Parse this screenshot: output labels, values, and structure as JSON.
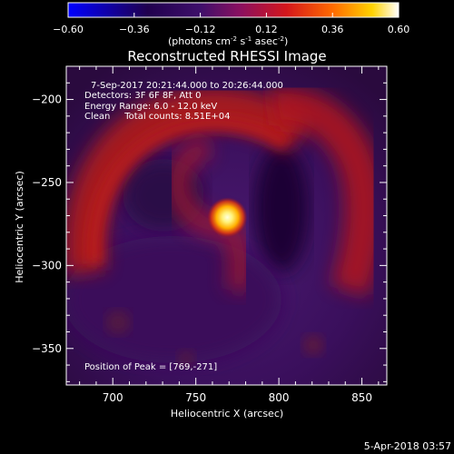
{
  "chart_data": {
    "type": "heatmap",
    "title": "Reconstructed RHESSI Image",
    "xlabel": "Heliocentric X (arcsec)",
    "ylabel": "Heliocentric Y (arcsec)",
    "xlim": [
      672,
      865
    ],
    "ylim": [
      -372,
      -180
    ],
    "x_ticks": [
      700,
      750,
      800,
      850
    ],
    "y_ticks": [
      -200,
      -250,
      -300,
      -350
    ],
    "colorbar": {
      "range": [
        -0.6,
        0.6
      ],
      "ticks": [
        "-0.60",
        "-0.36",
        "-0.12",
        "0.12",
        "0.36",
        "0.60"
      ],
      "unit": "(photons cm",
      "colors": [
        "#0000ff",
        "#1c0050",
        "#4a1570",
        "#8a1060",
        "#d01a1a",
        "#ff7a00",
        "#ffd000",
        "#ffffff"
      ]
    },
    "annotations": {
      "time": "7-Sep-2017 20:21:44.000 to 20:26:44.000",
      "detectors": "Detectors: 3F 6F 8F, Att 0",
      "energy": "Energy Range: 6.0 - 12.0 keV",
      "clean": "Clean     Total counts: 8.51E+04",
      "peak": "Position of Peak = [769,-271]"
    },
    "peak": {
      "x": 769,
      "y": -271,
      "value": 0.6
    }
  },
  "footer_date": "5-Apr-2018 03:57"
}
